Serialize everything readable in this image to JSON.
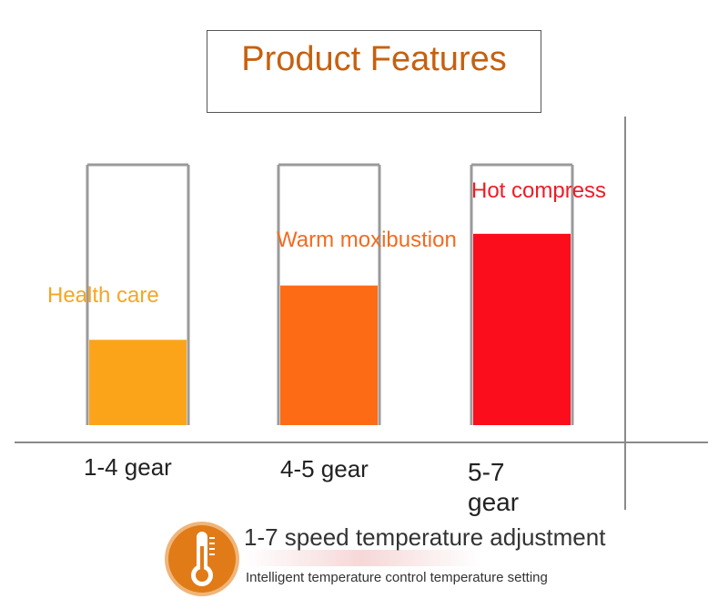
{
  "title": "Product Features",
  "chart_data": {
    "type": "bar",
    "categories": [
      "1-4 gear",
      "4-5 gear",
      "5-7\ngear"
    ],
    "values": [
      0.33,
      0.54,
      0.74
    ],
    "labels": [
      "Health care",
      "Warm moxibustion",
      "Hot compress"
    ],
    "colors": [
      "#fba41a",
      "#fd6b14",
      "#fc0d1b"
    ],
    "label_colors": [
      "#f5a623",
      "#f26b21",
      "#ee1c25"
    ],
    "value_unit": "fraction of column filled",
    "grid": false
  },
  "footer": {
    "icon": "thermometer-icon",
    "title": "1-7 speed temperature adjustment",
    "subtitle": "Intelligent temperature control temperature setting",
    "icon_color": "#e07b17"
  }
}
